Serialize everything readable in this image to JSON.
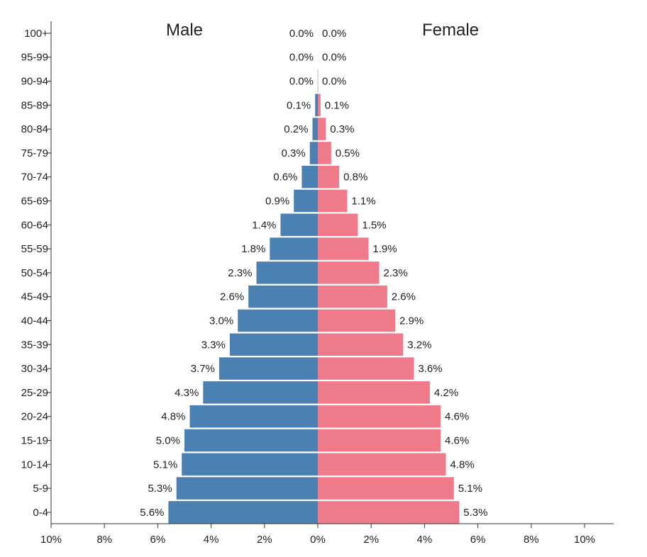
{
  "chart_data": {
    "type": "bar",
    "orientation": "horizontal",
    "layout": "population-pyramid",
    "categories": [
      "100+",
      "95-99",
      "90-94",
      "85-89",
      "80-84",
      "75-79",
      "70-74",
      "65-69",
      "60-64",
      "55-59",
      "50-54",
      "45-49",
      "40-44",
      "35-39",
      "30-34",
      "25-29",
      "20-24",
      "15-19",
      "10-14",
      "5-9",
      "0-4"
    ],
    "series": [
      {
        "name": "Male",
        "color": "#4a80b2",
        "values": [
          0.0,
          0.0,
          0.0,
          0.1,
          0.2,
          0.3,
          0.6,
          0.9,
          1.4,
          1.8,
          2.3,
          2.6,
          3.0,
          3.3,
          3.7,
          4.3,
          4.8,
          5.0,
          5.1,
          5.3,
          5.6
        ],
        "labels": [
          "0.0%",
          "0.0%",
          "0.0%",
          "0.1%",
          "0.2%",
          "0.3%",
          "0.6%",
          "0.9%",
          "1.4%",
          "1.8%",
          "2.3%",
          "2.6%",
          "3.0%",
          "3.3%",
          "3.7%",
          "4.3%",
          "4.8%",
          "5.0%",
          "5.1%",
          "5.3%",
          "5.6%"
        ]
      },
      {
        "name": "Female",
        "color": "#ee7a8a",
        "values": [
          0.0,
          0.0,
          0.0,
          0.1,
          0.3,
          0.5,
          0.8,
          1.1,
          1.5,
          1.9,
          2.3,
          2.6,
          2.9,
          3.2,
          3.6,
          4.2,
          4.6,
          4.6,
          4.8,
          5.1,
          5.3
        ],
        "labels": [
          "0.0%",
          "0.0%",
          "0.0%",
          "0.1%",
          "0.3%",
          "0.5%",
          "0.8%",
          "1.1%",
          "1.5%",
          "1.9%",
          "2.3%",
          "2.6%",
          "2.9%",
          "3.2%",
          "3.6%",
          "4.2%",
          "4.6%",
          "4.6%",
          "4.8%",
          "5.1%",
          "5.3%"
        ]
      }
    ],
    "xlim": [
      -10,
      10
    ],
    "xticks": [
      -10,
      -8,
      -6,
      -4,
      -2,
      0,
      2,
      4,
      6,
      8,
      10
    ],
    "xtick_labels": [
      "10%",
      "8%",
      "6%",
      "4%",
      "2%",
      "0%",
      "2%",
      "4%",
      "6%",
      "8%",
      "10%"
    ],
    "title": "",
    "xlabel": "",
    "ylabel": "",
    "grid": false,
    "legend": "none"
  }
}
